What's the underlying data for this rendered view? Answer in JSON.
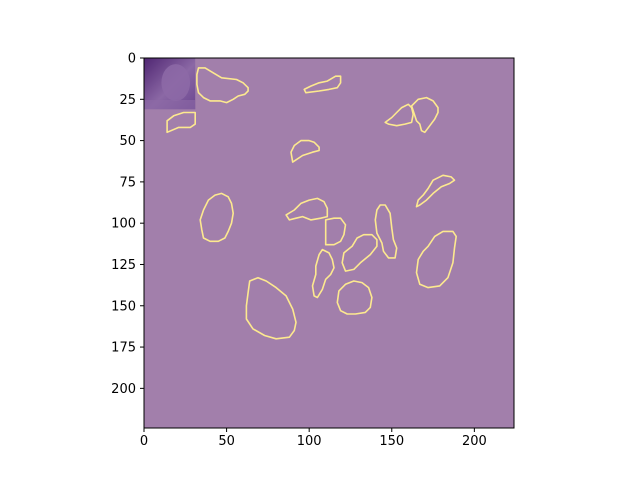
{
  "colors": {
    "background": "#a27fab",
    "contour": "#fde98f",
    "thumb_dark": "#5b2f80",
    "thumb_light": "#8d6aa7",
    "axis": "#000000"
  },
  "chart_data": {
    "type": "contour-image",
    "title": "",
    "xlabel": "",
    "ylabel": "",
    "xlim": [
      0,
      224
    ],
    "ylim": [
      224,
      0
    ],
    "y_inverted": true,
    "grid": false,
    "legend": "none",
    "xticks": [
      0,
      50,
      100,
      150,
      200
    ],
    "yticks": [
      0,
      25,
      50,
      75,
      100,
      125,
      150,
      175,
      200
    ],
    "inset_image": {
      "x": [
        0,
        31
      ],
      "y": [
        0,
        31
      ]
    },
    "contours": [
      {
        "name": "c1",
        "points": [
          [
            33,
            6
          ],
          [
            37,
            6
          ],
          [
            42,
            9
          ],
          [
            47,
            12
          ],
          [
            56,
            13
          ],
          [
            60,
            15
          ],
          [
            63,
            18
          ],
          [
            63,
            20
          ],
          [
            61,
            22
          ],
          [
            57,
            23
          ],
          [
            54,
            25
          ],
          [
            50,
            27
          ],
          [
            46,
            26
          ],
          [
            40,
            26
          ],
          [
            36,
            24
          ],
          [
            33,
            21
          ],
          [
            32,
            16
          ],
          [
            32,
            10
          ]
        ]
      },
      {
        "name": "c2",
        "points": [
          [
            97,
            19
          ],
          [
            101,
            17
          ],
          [
            106,
            15
          ],
          [
            111,
            14
          ],
          [
            116,
            11
          ],
          [
            119,
            11
          ],
          [
            119,
            15
          ],
          [
            117,
            18
          ],
          [
            112,
            19
          ],
          [
            106,
            20
          ],
          [
            98,
            21
          ]
        ]
      },
      {
        "name": "c3",
        "points": [
          [
            14,
            38
          ],
          [
            18,
            35
          ],
          [
            24,
            33
          ],
          [
            31,
            33
          ],
          [
            31,
            40
          ],
          [
            28,
            42
          ],
          [
            21,
            42
          ],
          [
            14,
            45
          ]
        ]
      },
      {
        "name": "c4",
        "points": [
          [
            150,
            36
          ],
          [
            153,
            33
          ],
          [
            156,
            30
          ],
          [
            160,
            28
          ],
          [
            162,
            30
          ],
          [
            163,
            34
          ],
          [
            162,
            39
          ],
          [
            158,
            40
          ],
          [
            153,
            41
          ],
          [
            148,
            40
          ],
          [
            146,
            39
          ]
        ]
      },
      {
        "name": "c5",
        "points": [
          [
            162,
            29
          ],
          [
            166,
            25
          ],
          [
            171,
            24
          ],
          [
            175,
            26
          ],
          [
            178,
            30
          ],
          [
            178,
            33
          ],
          [
            176,
            37
          ],
          [
            173,
            41
          ],
          [
            170,
            45
          ],
          [
            168,
            44
          ],
          [
            167,
            40
          ],
          [
            165,
            38
          ]
        ]
      },
      {
        "name": "c6",
        "points": [
          [
            89,
            57
          ],
          [
            91,
            53
          ],
          [
            95,
            50
          ],
          [
            100,
            50
          ],
          [
            103,
            51
          ],
          [
            106,
            54
          ],
          [
            106,
            56
          ],
          [
            102,
            57
          ],
          [
            96,
            59
          ],
          [
            90,
            63
          ]
        ]
      },
      {
        "name": "c7",
        "points": [
          [
            165,
            90
          ],
          [
            166,
            86
          ],
          [
            169,
            83
          ],
          [
            172,
            79
          ],
          [
            175,
            74
          ],
          [
            181,
            71
          ],
          [
            186,
            72
          ],
          [
            188,
            74
          ],
          [
            185,
            76
          ],
          [
            180,
            78
          ],
          [
            175,
            82
          ],
          [
            171,
            86
          ],
          [
            167,
            89
          ]
        ]
      },
      {
        "name": "c8",
        "points": [
          [
            34,
            98
          ],
          [
            36,
            92
          ],
          [
            39,
            86
          ],
          [
            43,
            83
          ],
          [
            47,
            82
          ],
          [
            51,
            84
          ],
          [
            53,
            88
          ],
          [
            54,
            94
          ],
          [
            53,
            100
          ],
          [
            51,
            105
          ],
          [
            49,
            109
          ],
          [
            45,
            111
          ],
          [
            40,
            111
          ],
          [
            36,
            109
          ],
          [
            35,
            104
          ]
        ]
      },
      {
        "name": "c9",
        "points": [
          [
            86,
            95
          ],
          [
            91,
            92
          ],
          [
            95,
            88
          ],
          [
            100,
            86
          ],
          [
            105,
            85
          ],
          [
            109,
            87
          ],
          [
            111,
            91
          ],
          [
            111,
            96
          ],
          [
            107,
            97
          ],
          [
            101,
            98
          ],
          [
            96,
            96
          ],
          [
            92,
            97
          ],
          [
            88,
            98
          ]
        ]
      },
      {
        "name": "c10",
        "points": [
          [
            110,
            98
          ],
          [
            115,
            97
          ],
          [
            119,
            97
          ],
          [
            122,
            101
          ],
          [
            121,
            107
          ],
          [
            119,
            111
          ],
          [
            115,
            113
          ],
          [
            110,
            113
          ]
        ]
      },
      {
        "name": "c11",
        "points": [
          [
            140,
            98
          ],
          [
            141,
            92
          ],
          [
            143,
            89
          ],
          [
            146,
            89
          ],
          [
            149,
            94
          ],
          [
            150,
            103
          ],
          [
            151,
            110
          ],
          [
            153,
            115
          ],
          [
            152,
            121
          ],
          [
            148,
            121
          ],
          [
            145,
            117
          ],
          [
            144,
            112
          ],
          [
            141,
            106
          ]
        ]
      },
      {
        "name": "c12",
        "points": [
          [
            126,
            114
          ],
          [
            129,
            109
          ],
          [
            133,
            107
          ],
          [
            138,
            107
          ],
          [
            141,
            110
          ],
          [
            141,
            114
          ],
          [
            137,
            119
          ],
          [
            131,
            124
          ],
          [
            127,
            128
          ],
          [
            122,
            129
          ],
          [
            120,
            124
          ],
          [
            121,
            118
          ]
        ]
      },
      {
        "name": "c13",
        "points": [
          [
            172,
            114
          ],
          [
            176,
            108
          ],
          [
            181,
            105
          ],
          [
            187,
            105
          ],
          [
            189,
            108
          ],
          [
            188,
            115
          ],
          [
            187,
            124
          ],
          [
            184,
            133
          ],
          [
            179,
            138
          ],
          [
            172,
            139
          ],
          [
            167,
            137
          ],
          [
            165,
            130
          ],
          [
            166,
            122
          ],
          [
            169,
            117
          ]
        ]
      },
      {
        "name": "c14",
        "points": [
          [
            104,
            126
          ],
          [
            106,
            119
          ],
          [
            108,
            116
          ],
          [
            112,
            118
          ],
          [
            114,
            122
          ],
          [
            115,
            127
          ],
          [
            113,
            131
          ],
          [
            110,
            134
          ],
          [
            108,
            140
          ],
          [
            105,
            145
          ],
          [
            103,
            144
          ],
          [
            102,
            138
          ],
          [
            104,
            131
          ]
        ]
      },
      {
        "name": "c15",
        "points": [
          [
            64,
            135
          ],
          [
            69,
            133
          ],
          [
            74,
            135
          ],
          [
            80,
            139
          ],
          [
            86,
            144
          ],
          [
            90,
            152
          ],
          [
            92,
            160
          ],
          [
            91,
            165
          ],
          [
            88,
            169
          ],
          [
            80,
            170
          ],
          [
            73,
            168
          ],
          [
            66,
            164
          ],
          [
            62,
            158
          ],
          [
            62,
            150
          ],
          [
            63,
            142
          ]
        ]
      },
      {
        "name": "c16",
        "points": [
          [
            118,
            141
          ],
          [
            122,
            137
          ],
          [
            127,
            135
          ],
          [
            132,
            136
          ],
          [
            136,
            139
          ],
          [
            138,
            145
          ],
          [
            137,
            151
          ],
          [
            134,
            154
          ],
          [
            128,
            155
          ],
          [
            123,
            155
          ],
          [
            119,
            153
          ],
          [
            117,
            148
          ]
        ]
      }
    ]
  }
}
